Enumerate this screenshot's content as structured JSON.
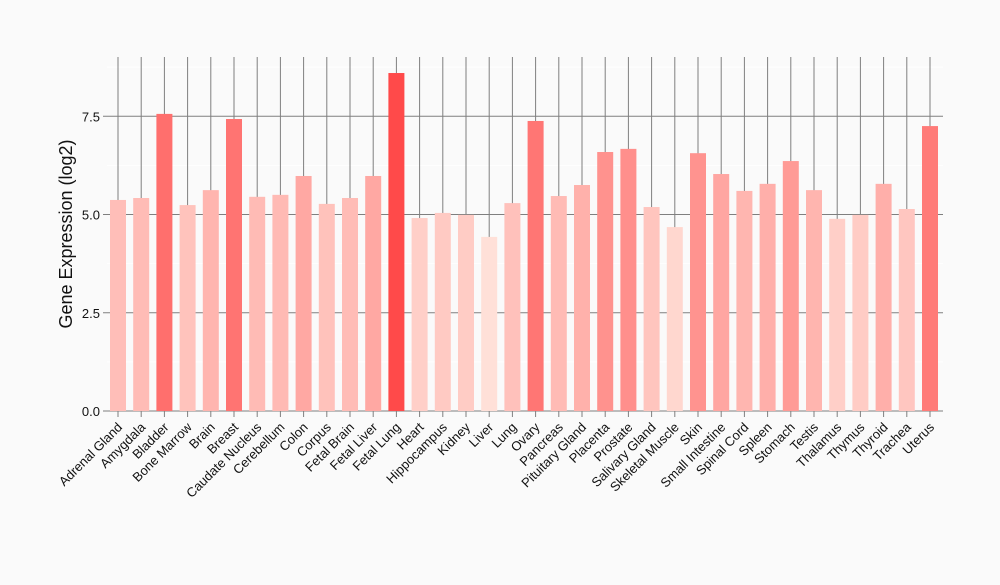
{
  "chart_data": {
    "type": "bar",
    "title": "",
    "xlabel": "",
    "ylabel": "Gene Expression (log2)",
    "ylim": [
      0,
      9.0
    ],
    "yticks": [
      "0.0",
      "2.5",
      "5.0",
      "7.5"
    ],
    "ytick_values": [
      0,
      2.5,
      5.0,
      7.5
    ],
    "grid": true,
    "legend": "none",
    "color_low": "#ffe0d8",
    "color_high": "#ff4a4a",
    "categories": [
      "Adrenal Gland",
      "Amygdala",
      "Bladder",
      "Bone Marrow",
      "Brain",
      "Breast",
      "Caudate Nucleus",
      "Cerebellum",
      "Colon",
      "Corpus",
      "Fetal Brain",
      "Fetal Liver",
      "Fetal Lung",
      "Heart",
      "Hippocampus",
      "Kidney",
      "Liver",
      "Lung",
      "Ovary",
      "Pancreas",
      "Pituitary Gland",
      "Placenta",
      "Prostate",
      "Salivary Gland",
      "Skeletal Muscle",
      "Skin",
      "Small Intestine",
      "Spinal Cord",
      "Spleen",
      "Stomach",
      "Testis",
      "Thalamus",
      "Thymus",
      "Thyroid",
      "Trachea",
      "Uterus"
    ],
    "values": [
      5.37,
      5.42,
      7.56,
      5.24,
      5.62,
      7.43,
      5.45,
      5.5,
      5.98,
      5.27,
      5.42,
      5.98,
      8.6,
      4.91,
      5.04,
      4.99,
      4.43,
      5.29,
      7.38,
      5.47,
      5.75,
      6.59,
      6.67,
      5.19,
      4.68,
      6.56,
      6.03,
      5.6,
      5.78,
      6.36,
      5.62,
      4.89,
      4.99,
      5.78,
      5.14,
      7.25
    ]
  }
}
